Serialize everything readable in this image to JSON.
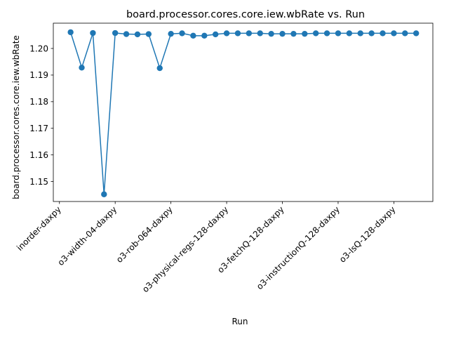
{
  "chart_data": {
    "type": "line",
    "title": "board.processor.cores.core.iew.wbRate vs. Run",
    "xlabel": "Run",
    "ylabel": "board.processor.cores.core.iew.wbRate",
    "ylim": [
      1.1425,
      1.2095
    ],
    "yticks": [
      1.15,
      1.16,
      1.17,
      1.18,
      1.19,
      1.2
    ],
    "ytick_labels": [
      "1.15",
      "1.16",
      "1.17",
      "1.18",
      "1.19",
      "1.20"
    ],
    "xlim": [
      -1.55,
      32.5
    ],
    "xticks": [
      -1,
      4,
      9,
      14,
      19,
      24,
      29
    ],
    "xtick_labels": [
      "inorder-daxpy",
      "o3-width-04-daxpy",
      "o3-rob-064-daxpy",
      "o3-physical-regs-128-daxpy",
      "o3-fetchQ-128-daxpy",
      "o3-instructionQ-128-daxpy",
      "o3-lsQ-128-daxpy"
    ],
    "grid": false,
    "color": "#1f77b4",
    "series": [
      {
        "values": [
          1.2061,
          1.1928,
          1.2058,
          1.1452,
          1.2058,
          1.2054,
          1.2053,
          1.2054,
          1.1926,
          1.2055,
          1.2057,
          1.2048,
          1.2048,
          1.2053,
          1.2057,
          1.2057,
          1.2057,
          1.2057,
          1.2055,
          1.2055,
          1.2055,
          1.2055,
          1.2057,
          1.2057,
          1.2057,
          1.2057,
          1.2057,
          1.2057,
          1.2057,
          1.2057,
          1.2057,
          1.2057
        ]
      }
    ]
  }
}
